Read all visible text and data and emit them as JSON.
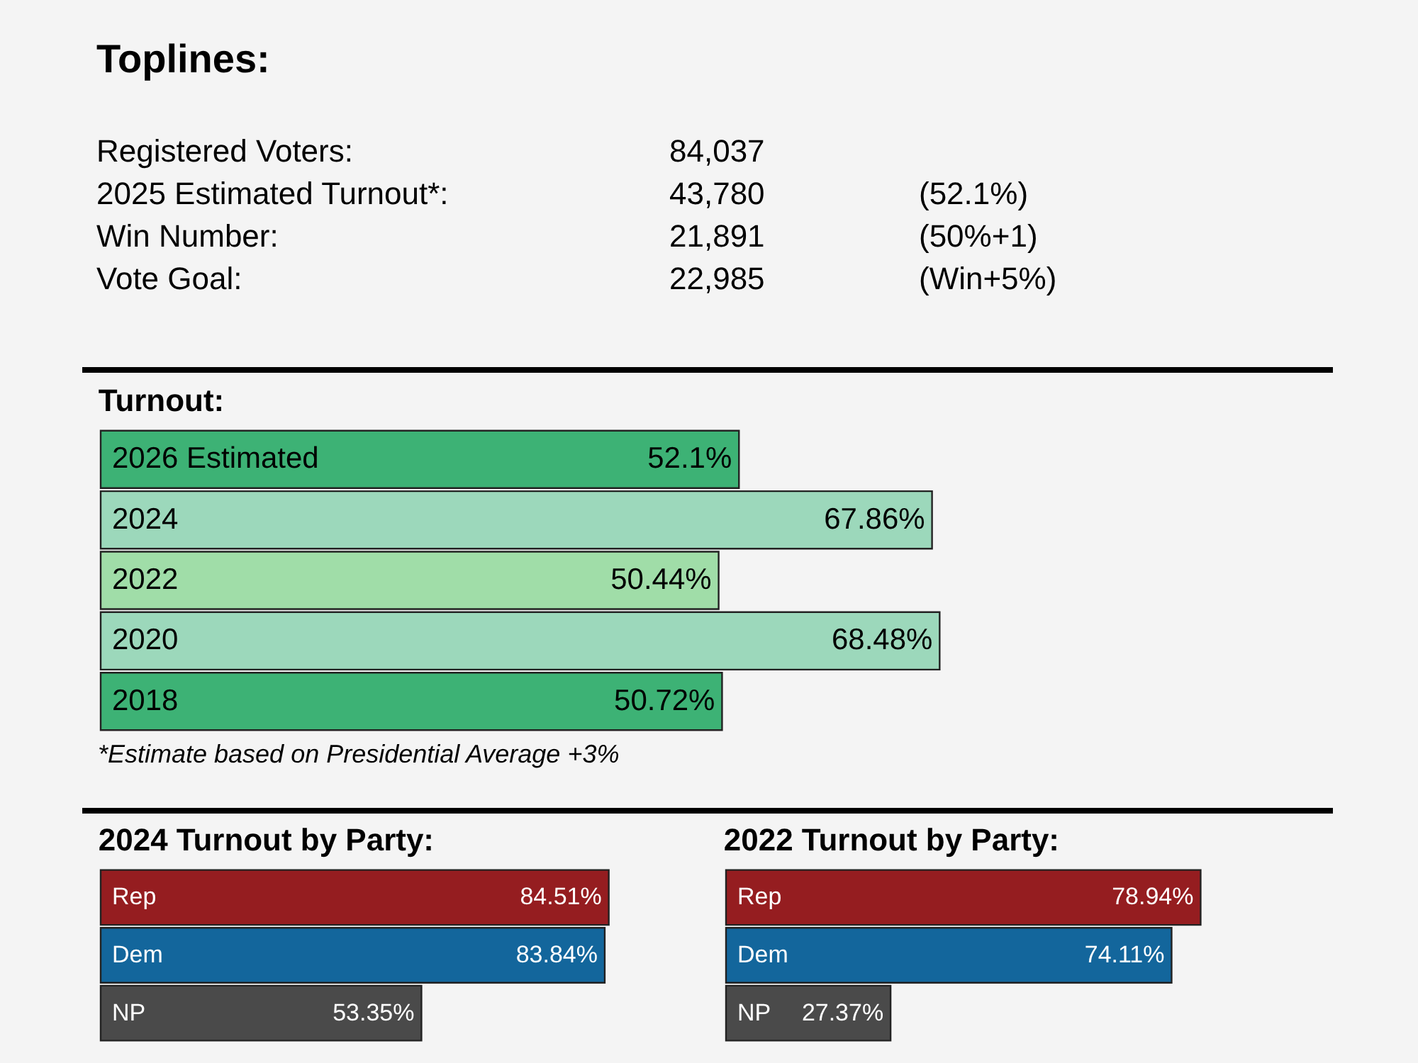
{
  "chart_data": [
    {
      "type": "other",
      "title": "Toplines:",
      "annotations": [
        "Registered Voters:\t84,037",
        "2025 Estimated Turnout*:\t43,780\t(52.1%)",
        "Win Number:\t21,891\t(50%+1)",
        "Vote Goal:\t22,985\t(Win+5%)"
      ]
    },
    {
      "type": "bar",
      "orientation": "horizontal",
      "title": "Turnout:",
      "categories": [
        "2026 Estimated",
        "2024",
        "2022",
        "2020",
        "2018"
      ],
      "values": [
        52.1,
        67.86,
        50.44,
        68.48,
        50.72
      ],
      "value_labels": [
        "52.1%",
        "67.86%",
        "50.44%",
        "68.48%",
        "50.72%"
      ],
      "colors": [
        "#3db275",
        "#9cd8bb",
        "#a0dda8",
        "#9cd8bb",
        "#3db275"
      ],
      "annotations": [
        "*Estimate based on Presidential Average +3%"
      ]
    },
    {
      "type": "bar",
      "orientation": "horizontal",
      "title": "2024 Turnout by Party:",
      "categories": [
        "Rep",
        "Dem",
        "NP"
      ],
      "values": [
        84.51,
        83.84,
        53.35
      ],
      "value_labels": [
        "84.51%",
        "83.84%",
        "53.35%"
      ],
      "colors": [
        "#951d20",
        "#13669c",
        "#4a4a4a"
      ]
    },
    {
      "type": "bar",
      "orientation": "horizontal",
      "title": "2022 Turnout by Party:",
      "categories": [
        "Rep",
        "Dem",
        "NP"
      ],
      "values": [
        78.94,
        74.11,
        27.37
      ],
      "value_labels": [
        "78.94%",
        "74.11%",
        "27.37%"
      ],
      "colors": [
        "#951d20",
        "#13669c",
        "#4a4a4a"
      ]
    }
  ]
}
